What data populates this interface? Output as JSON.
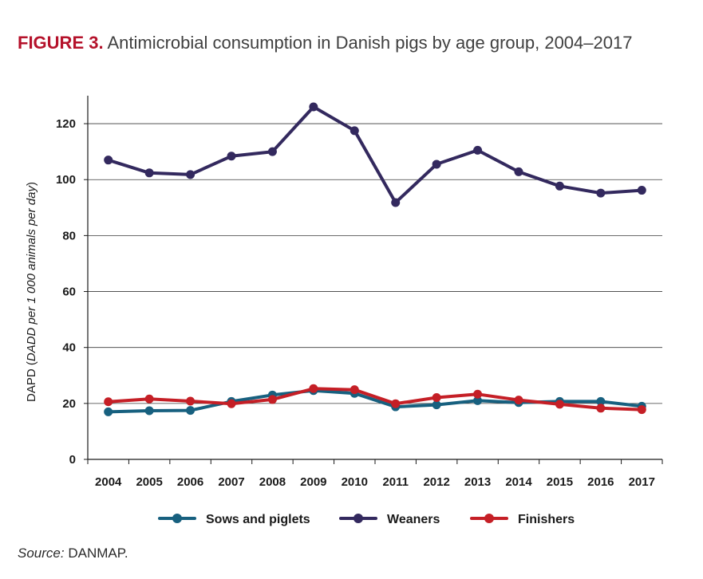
{
  "figure": {
    "label": "FIGURE 3.",
    "title": "Antimicrobial consumption in Danish pigs by age group, 2004–2017"
  },
  "source": {
    "label": "Source:",
    "text": "DANMAP."
  },
  "chart_data": {
    "type": "line",
    "x": [
      "2004",
      "2005",
      "2006",
      "2007",
      "2008",
      "2009",
      "2010",
      "2011",
      "2012",
      "2013",
      "2014",
      "2015",
      "2016",
      "2017"
    ],
    "ylabel_prefix": "DAPD (",
    "ylabel_italic": "DADD per 1 000 animals per day",
    "ylabel_suffix": ")",
    "ylim": [
      0,
      130
    ],
    "yticks": [
      "0",
      "20",
      "40",
      "60",
      "80",
      "100",
      "120"
    ],
    "grid": true,
    "legend_position": "bottom",
    "series": [
      {
        "name": "Sows and piglets",
        "color": "#17607f",
        "values": [
          17.0,
          17.4,
          17.5,
          20.7,
          23.0,
          24.6,
          23.6,
          18.8,
          19.5,
          21.0,
          20.3,
          20.7,
          20.7,
          19.0
        ]
      },
      {
        "name": "Weaners",
        "color": "#33295e",
        "values": [
          107.0,
          102.4,
          101.8,
          108.4,
          110.0,
          126.0,
          117.5,
          91.8,
          105.5,
          110.5,
          102.8,
          97.7,
          95.2,
          96.2
        ]
      },
      {
        "name": "Finishers",
        "color": "#c51f26",
        "values": [
          20.6,
          21.6,
          20.8,
          19.9,
          21.4,
          25.3,
          24.9,
          19.9,
          22.1,
          23.3,
          21.2,
          19.7,
          18.3,
          17.8
        ]
      }
    ]
  }
}
